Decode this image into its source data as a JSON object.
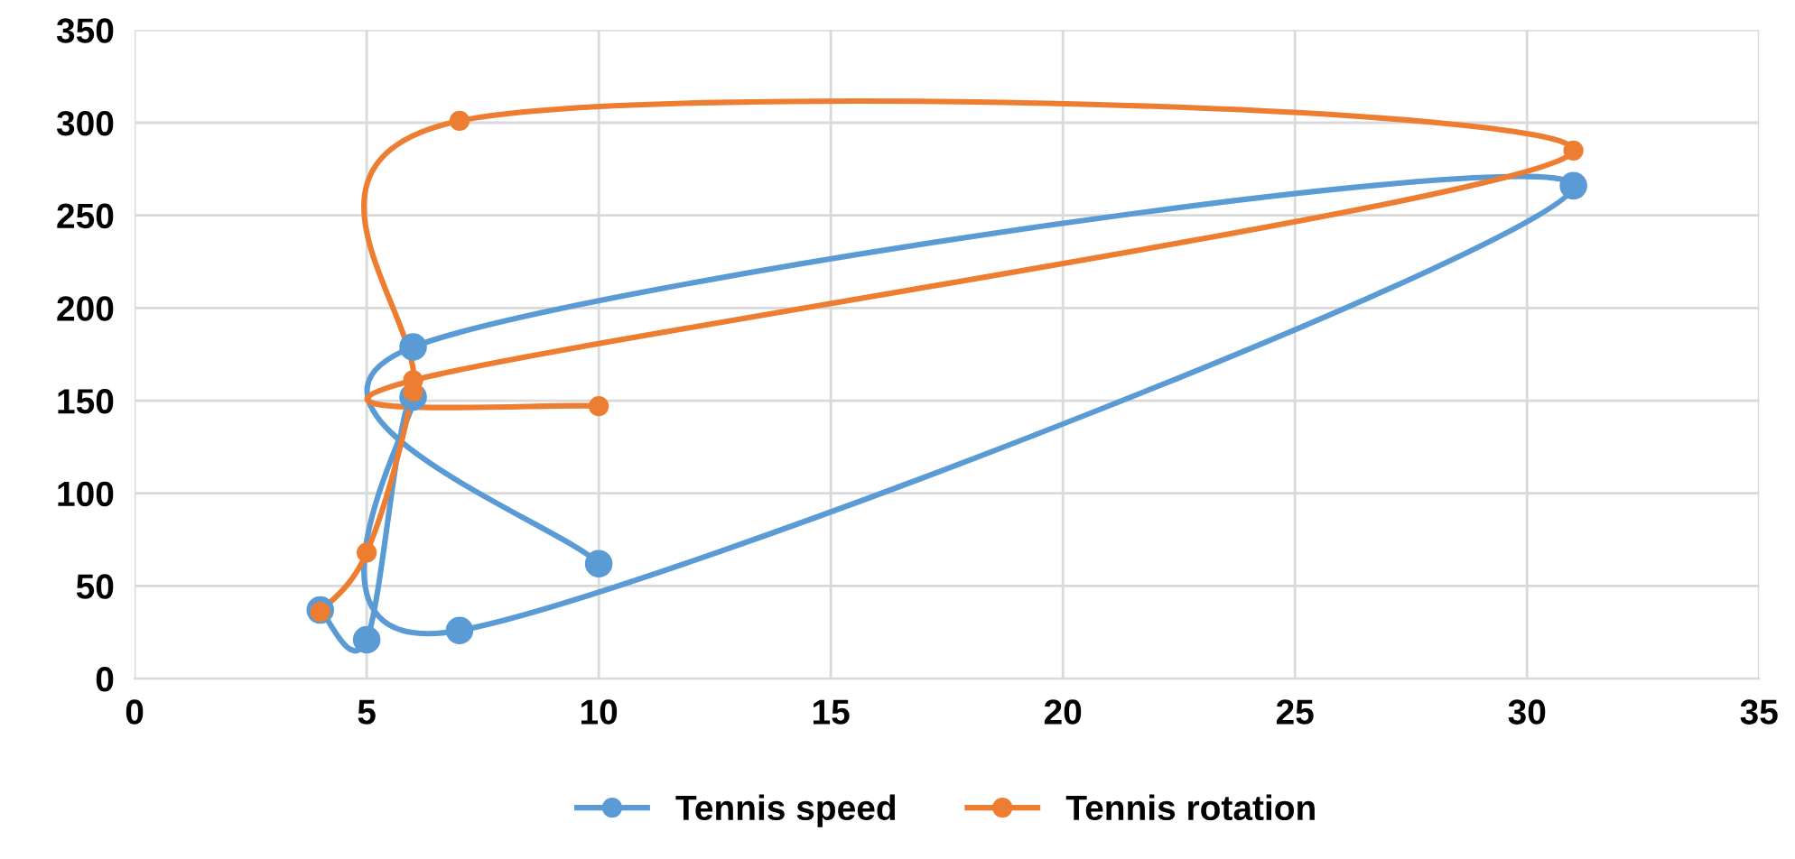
{
  "chart_data": {
    "type": "line",
    "series": [
      {
        "name": "Tennis speed",
        "color": "#5b9bd5",
        "x": [
          4,
          5,
          6,
          7,
          31,
          6,
          10
        ],
        "values": [
          37,
          21,
          152,
          26,
          266,
          179,
          62
        ]
      },
      {
        "name": "Tennis rotation",
        "color": "#ed7d31",
        "x": [
          4,
          5,
          6,
          7,
          31,
          6,
          10
        ],
        "values": [
          36,
          68,
          155,
          301,
          285,
          161,
          147
        ]
      }
    ],
    "xlim": [
      0,
      35
    ],
    "xticks": [
      0,
      5,
      10,
      15,
      20,
      25,
      30,
      35
    ],
    "ylim": [
      0,
      350
    ],
    "yticks": [
      0,
      50,
      100,
      150,
      200,
      250,
      300,
      350
    ],
    "grid": true,
    "legend": "bottom",
    "marker": "circle",
    "line_style": "solid"
  }
}
